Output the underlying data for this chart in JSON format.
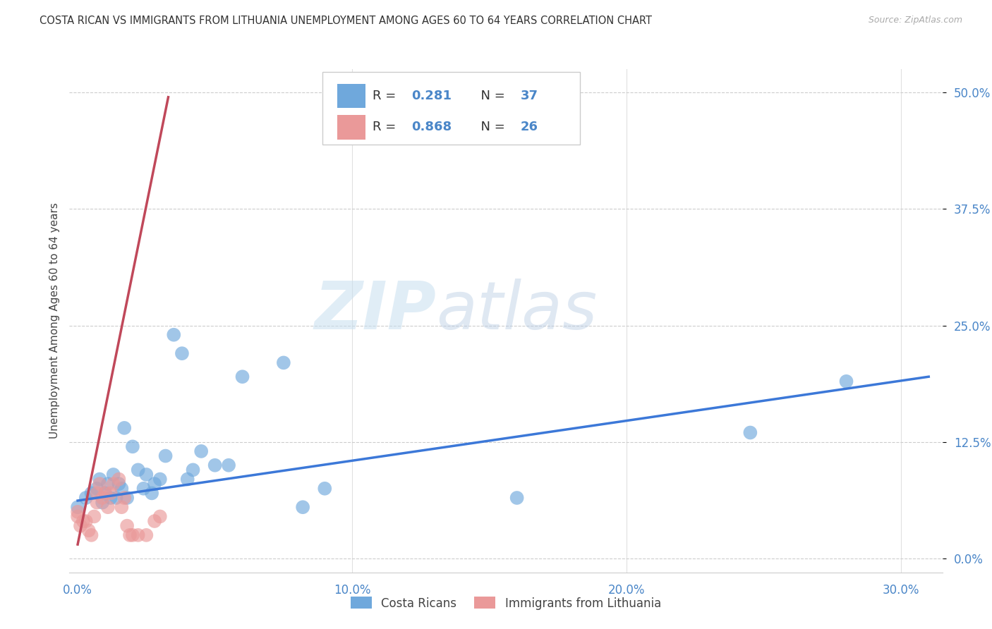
{
  "title": "COSTA RICAN VS IMMIGRANTS FROM LITHUANIA UNEMPLOYMENT AMONG AGES 60 TO 64 YEARS CORRELATION CHART",
  "source": "Source: ZipAtlas.com",
  "xlabel_ticks": [
    "0.0%",
    "10.0%",
    "20.0%",
    "30.0%"
  ],
  "ylabel_ticks": [
    "0.0%",
    "12.5%",
    "25.0%",
    "37.5%",
    "50.0%"
  ],
  "xlabel_vals": [
    0.0,
    0.1,
    0.2,
    0.3
  ],
  "ylabel_vals": [
    0.0,
    0.125,
    0.25,
    0.375,
    0.5
  ],
  "xlim": [
    -0.003,
    0.315
  ],
  "ylim": [
    -0.015,
    0.525
  ],
  "ylabel": "Unemployment Among Ages 60 to 64 years",
  "legend_r1": "R =  0.281",
  "legend_n1": "N = 37",
  "legend_r2": "R =  0.868",
  "legend_n2": "N = 26",
  "blue_color": "#6fa8dc",
  "pink_color": "#ea9999",
  "line_blue": "#3c78d8",
  "line_pink": "#c0485a",
  "watermark_zip": "ZIP",
  "watermark_atlas": "atlas",
  "blue_scatter_x": [
    0.0,
    0.003,
    0.005,
    0.007,
    0.008,
    0.009,
    0.01,
    0.011,
    0.012,
    0.013,
    0.014,
    0.015,
    0.016,
    0.017,
    0.018,
    0.02,
    0.022,
    0.024,
    0.025,
    0.027,
    0.028,
    0.03,
    0.032,
    0.035,
    0.038,
    0.04,
    0.042,
    0.045,
    0.05,
    0.055,
    0.06,
    0.075,
    0.082,
    0.09,
    0.16,
    0.245,
    0.28
  ],
  "blue_scatter_y": [
    0.055,
    0.065,
    0.07,
    0.075,
    0.085,
    0.06,
    0.07,
    0.08,
    0.065,
    0.09,
    0.065,
    0.08,
    0.075,
    0.14,
    0.065,
    0.12,
    0.095,
    0.075,
    0.09,
    0.07,
    0.08,
    0.085,
    0.11,
    0.24,
    0.22,
    0.085,
    0.095,
    0.115,
    0.1,
    0.1,
    0.195,
    0.21,
    0.055,
    0.075,
    0.065,
    0.135,
    0.19
  ],
  "pink_scatter_x": [
    0.0,
    0.0,
    0.001,
    0.002,
    0.003,
    0.004,
    0.005,
    0.006,
    0.007,
    0.007,
    0.008,
    0.009,
    0.01,
    0.011,
    0.012,
    0.013,
    0.015,
    0.016,
    0.017,
    0.018,
    0.019,
    0.02,
    0.022,
    0.025,
    0.028,
    0.03
  ],
  "pink_scatter_y": [
    0.045,
    0.05,
    0.035,
    0.04,
    0.04,
    0.03,
    0.025,
    0.045,
    0.06,
    0.07,
    0.08,
    0.065,
    0.07,
    0.055,
    0.07,
    0.08,
    0.085,
    0.055,
    0.065,
    0.035,
    0.025,
    0.025,
    0.025,
    0.025,
    0.04,
    0.045
  ],
  "blue_line_x": [
    0.0,
    0.31
  ],
  "blue_line_y": [
    0.062,
    0.195
  ],
  "pink_line_x": [
    0.0,
    0.033
  ],
  "pink_line_y": [
    0.015,
    0.495
  ],
  "background_color": "#ffffff",
  "grid_color": "#cccccc"
}
